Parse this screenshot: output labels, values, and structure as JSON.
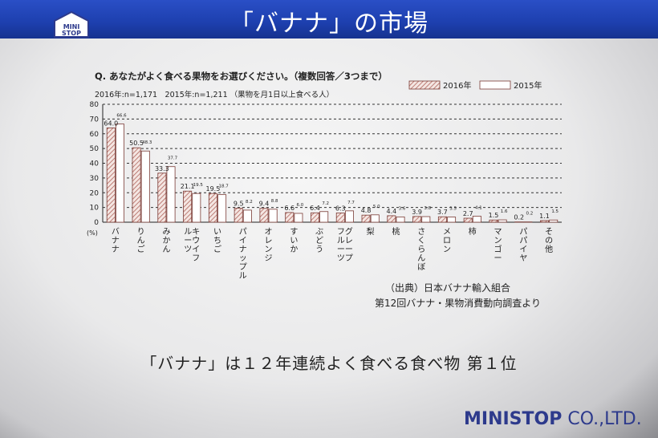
{
  "slide": {
    "title": "「バナナ」の市場",
    "question": "Q. あなたがよく食べる果物をお選びください。（複数回答／3つまで）",
    "sample": "2016年:n=1,171　2015年:n=1,211 （果物を月1日以上食べる人）",
    "source_line1": "（出典）日本バナナ輸入組合",
    "source_line2": "第12回バナナ・果物消費動向調査より",
    "summary": "「バナナ」は１２年連続よく食べる食べ物 第１位",
    "company": "MINISTOP",
    "company_suffix": " CO.,LTD.",
    "logo_text": "MINI STOP"
  },
  "chart_data": {
    "type": "bar",
    "unit_label": "(%)",
    "ylim": [
      0,
      80
    ],
    "yticks": [
      0,
      10,
      20,
      30,
      40,
      50,
      60,
      70,
      80
    ],
    "grid": true,
    "legend_position": "top-right",
    "categories": [
      "バナナ",
      "りんご",
      "みかん",
      "キウイフルーツ",
      "いちご",
      "パイナップル",
      "オレンジ",
      "すいか",
      "ぶどう",
      "グレープフルーツ",
      "梨",
      "桃",
      "さくらんぼ",
      "メロン",
      "柿",
      "マンゴー",
      "パパイヤ",
      "その他"
    ],
    "series": [
      {
        "name": "2016年",
        "values": [
          64.0,
          50.5,
          33.3,
          21.1,
          19.5,
          9.5,
          9.4,
          6.6,
          6.4,
          6.3,
          4.8,
          4.4,
          3.9,
          3.7,
          2.7,
          1.5,
          0.2,
          1.1
        ],
        "labels": [
          "64.0",
          "50.5",
          "33.3",
          "21.1",
          "19.5",
          "9.5",
          "9.4",
          "6.6",
          "6.4",
          "6.3",
          "4.8",
          "4.4",
          "3.9",
          "3.7",
          "2.7",
          "1.5",
          "0.2",
          "1.1"
        ],
        "style": "hatched"
      },
      {
        "name": "2015年",
        "values": [
          66.6,
          48.3,
          37.7,
          19.5,
          18.7,
          8.2,
          8.8,
          6.0,
          7.2,
          7.7,
          5.0,
          3.6,
          3.8,
          3.5,
          4.1,
          1.6,
          0.2,
          1.5
        ],
        "labels": [
          "66.6",
          "48.3",
          "37.7",
          "19.5",
          "18.7",
          "8.2",
          "8.8",
          "6.0",
          "7.2",
          "7.7",
          "5.0",
          "3.6",
          "3.8",
          "3.5",
          "4.1",
          "1.6",
          "0.2",
          "1.5"
        ],
        "style": "white"
      }
    ]
  }
}
